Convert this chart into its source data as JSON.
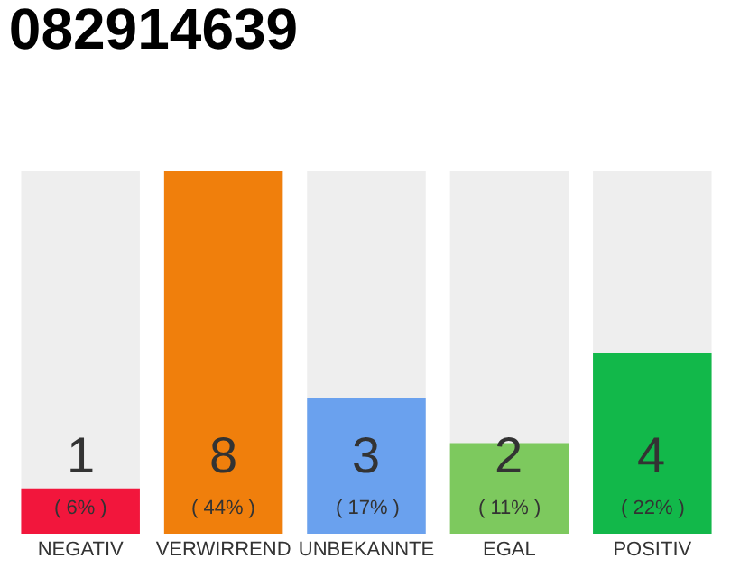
{
  "chart_data": {
    "type": "bar",
    "title": "082914639",
    "categories": [
      "NEGATIV",
      "VERWIRREND",
      "UNBEKANNTE",
      "EGAL",
      "POSITIV"
    ],
    "values": [
      1,
      8,
      3,
      2,
      4
    ],
    "colors": [
      "#f2163c",
      "#f07f0c",
      "#6aa1ee",
      "#7dc95e",
      "#12b84a"
    ],
    "value_labels": [
      "1\n( 6% )",
      "8\n( 44% )",
      "3\n( 17% )",
      "2\n( 11% )",
      "4\n( 22% )"
    ],
    "grid": false,
    "legend": false
  }
}
